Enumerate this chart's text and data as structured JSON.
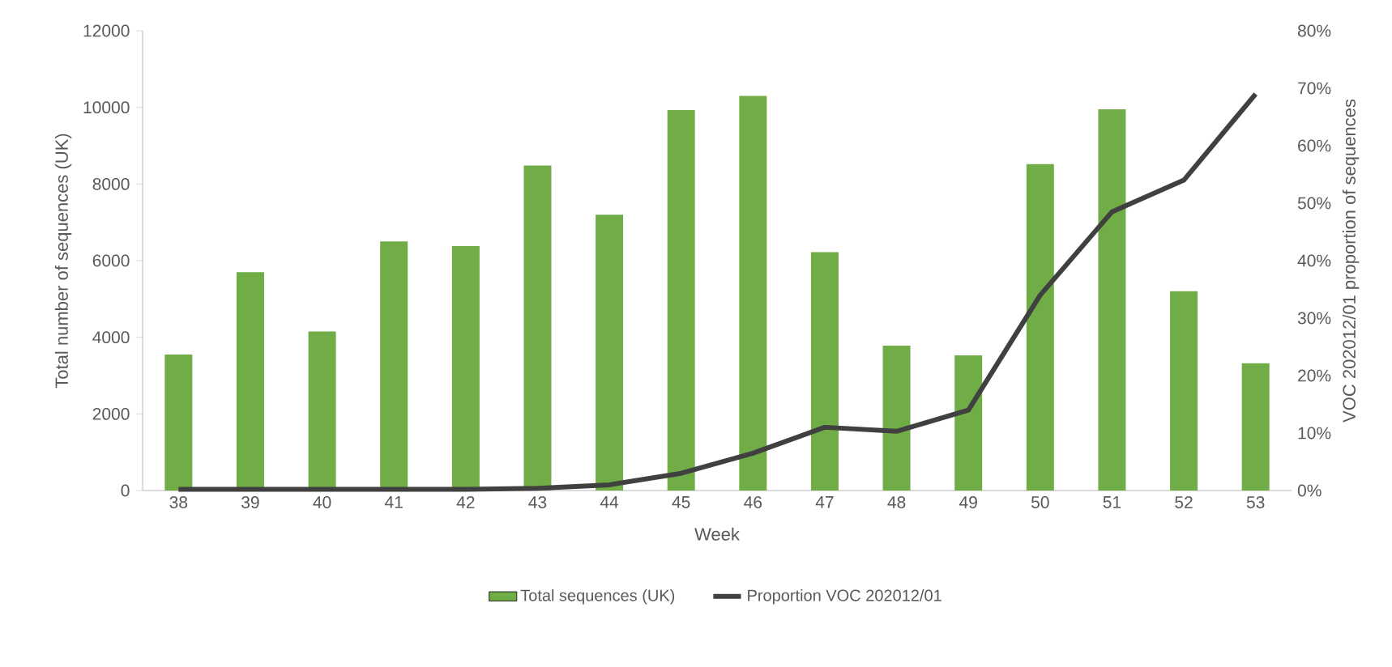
{
  "chart_data": {
    "type": "bar",
    "xlabel": "Week",
    "ylabel": "Total number of sequences (UK)",
    "y2label": "VOC 202012/01 proportion of sequences",
    "categories": [
      "38",
      "39",
      "40",
      "41",
      "42",
      "43",
      "44",
      "45",
      "46",
      "47",
      "48",
      "49",
      "50",
      "51",
      "52",
      "53"
    ],
    "series": [
      {
        "name": "Total sequences (UK)",
        "color": "#70ad47",
        "values": [
          3550,
          5700,
          4150,
          6500,
          6380,
          8480,
          7200,
          9930,
          10300,
          6220,
          3780,
          3530,
          8520,
          9950,
          5200,
          3320
        ]
      },
      {
        "name": "Proportion VOC 202012/01",
        "type": "line",
        "axis": "y2",
        "color": "#404040",
        "values": [
          0.2,
          0.2,
          0.2,
          0.2,
          0.2,
          0.4,
          1,
          3,
          6.5,
          11,
          10.3,
          14,
          34,
          48.5,
          54,
          69
        ]
      }
    ],
    "ylim": [
      0,
      12000
    ],
    "yticks": [
      0,
      2000,
      4000,
      6000,
      8000,
      10000,
      12000
    ],
    "y2lim": [
      0,
      80
    ],
    "y2ticks": [
      {
        "value": 0,
        "label": "0%"
      },
      {
        "value": 10,
        "label": "10%"
      },
      {
        "value": 20,
        "label": "20%"
      },
      {
        "value": 30,
        "label": "30%"
      },
      {
        "value": 40,
        "label": "40%"
      },
      {
        "value": 50,
        "label": "50%"
      },
      {
        "value": 60,
        "label": "60%"
      },
      {
        "value": 70,
        "label": "70%"
      },
      {
        "value": 80,
        "label": "80%"
      }
    ],
    "legend": "bottom",
    "grid": false,
    "marker": "none"
  }
}
